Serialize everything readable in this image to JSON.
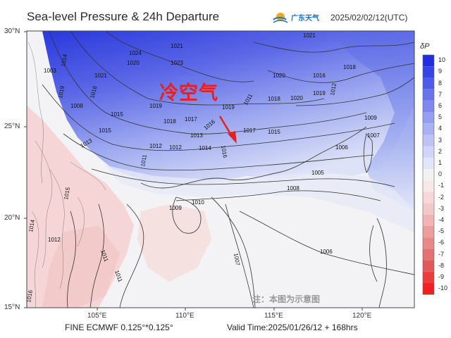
{
  "header": {
    "title": "Sea-level Pressure & 24h Departure",
    "logo_text": "广东天气",
    "date": "2025/02/02/12(UTC)"
  },
  "map": {
    "lat_labels": [
      "30°N",
      "25°N",
      "20°N",
      "15°N"
    ],
    "lon_labels": [
      "105°E",
      "110°E",
      "115°E",
      "120°E"
    ],
    "annotation": "冷空气",
    "note": "注：本图为示意图",
    "isobar_labels": [
      "1021",
      "1014",
      "1003",
      "1019",
      "1024",
      "1021",
      "1020",
      "1023",
      "1021",
      "1016",
      "1008",
      "1015",
      "1019",
      "1018",
      "1017",
      "1016",
      "1015",
      "1012",
      "1013",
      "1018",
      "1020",
      "1019",
      "1011",
      "1012",
      "1014",
      "1016",
      "1017",
      "1015",
      "1016",
      "1020",
      "1019",
      "1018",
      "1012",
      "1009",
      "1007",
      "1006",
      "1005",
      "1008",
      "1006",
      "1007",
      "1009",
      "1010",
      "1011",
      "1013",
      "1012",
      "1011",
      "1011",
      "1015",
      "1016",
      "1014",
      "1013"
    ],
    "colors": {
      "cold_deep": "#2f3fe0",
      "cold_light": "#aebcf0",
      "warm_light": "#f6d6d6",
      "neutral": "#f4f4f6",
      "arrow": "#e81f1f"
    }
  },
  "legend": {
    "title": "δP",
    "labels": [
      "10",
      "9",
      "8",
      "7",
      "6",
      "5",
      "4",
      "3",
      "2",
      "1",
      "0",
      "-1",
      "-2",
      "-3",
      "-4",
      "-5",
      "-6",
      "-7",
      "-8",
      "-9",
      "-10"
    ],
    "colors": [
      "#1f2fe0",
      "#3745e4",
      "#4f5be7",
      "#6a74ea",
      "#8088ee",
      "#969ef1",
      "#aab1f3",
      "#bec3f6",
      "#d0d4f8",
      "#e2e4fa",
      "#f2f2f2",
      "#f8e8e8",
      "#f6d8d8",
      "#f3c8c8",
      "#f0b4b4",
      "#ec9e9e",
      "#e88888",
      "#e47272",
      "#e05a5a",
      "#ea3e3e",
      "#f02020"
    ]
  },
  "footer": {
    "left": "FINE ECMWF 0.125°*0.125°",
    "right": "Valid Time:2025/01/26/12 + 168hrs"
  }
}
